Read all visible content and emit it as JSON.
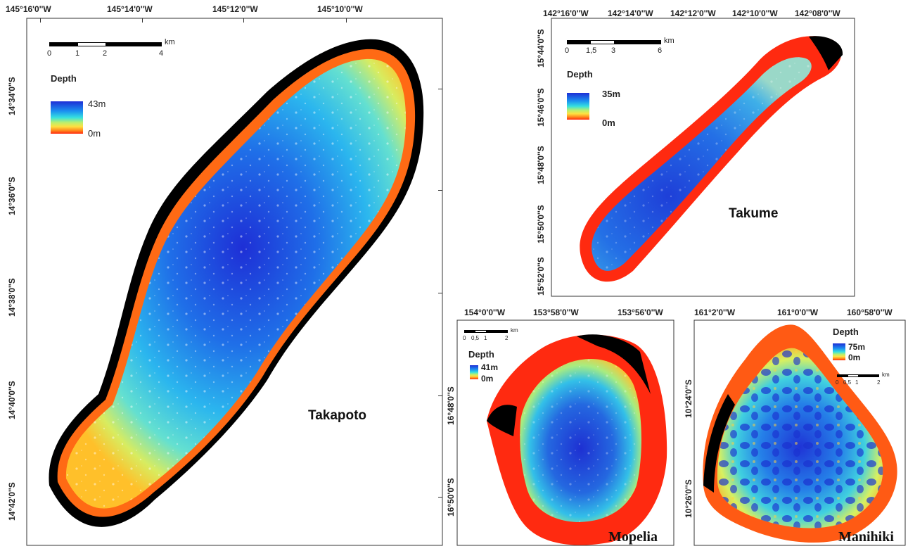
{
  "maps": {
    "takapoto": {
      "name": "Takapoto",
      "lon_labels": [
        "145°16'0''W",
        "145°14'0''W",
        "145°12'0''W",
        "145°10'0''W"
      ],
      "lat_labels": [
        "14°34'0''S",
        "14°36'0''S",
        "14°38'0''S",
        "14°40'0''S",
        "14°42'0''S"
      ],
      "scale_labels": [
        "0",
        "1",
        "2",
        "4",
        "km"
      ],
      "legend": {
        "title": "Depth",
        "max": "43m",
        "min": "0m"
      }
    },
    "takume": {
      "name": "Takume",
      "lon_labels": [
        "142°16'0''W",
        "142°14'0''W",
        "142°12'0''W",
        "142°10'0''W",
        "142°08'0''W"
      ],
      "lat_labels": [
        "15°44'0''S",
        "15°46'0''S",
        "15°48'0''S",
        "15°50'0''S",
        "15°52'0''S"
      ],
      "scale_labels": [
        "0",
        "1,5",
        "3",
        "6",
        "km"
      ],
      "legend": {
        "title": "Depth",
        "max": "35m",
        "min": "0m"
      }
    },
    "mopelia": {
      "name": "Mopelia",
      "lon_labels": [
        "154°0'0''W",
        "153°58'0''W",
        "153°56'0''W"
      ],
      "lat_labels": [
        "16°48'0''S",
        "16°50'0''S"
      ],
      "scale_labels": [
        "0",
        "0,5",
        "1",
        "2",
        "km"
      ],
      "legend": {
        "title": "Depth",
        "max": "41m",
        "min": "0m"
      }
    },
    "manihiki": {
      "name": "Manihiki",
      "lon_labels": [
        "161°2'0''W",
        "161°0'0''W",
        "160°58'0''W"
      ],
      "lat_labels": [
        "10°24'0''S",
        "10°26'0''S"
      ],
      "scale_labels": [
        "0",
        "0,5",
        "1",
        "2",
        "km"
      ],
      "legend": {
        "title": "Depth",
        "max": "75m",
        "min": "0m"
      }
    }
  },
  "colors": {
    "deep": "#1e2fd6",
    "mid": "#35e0e0",
    "shallow": "#ffe040",
    "rim": "#ff2a10",
    "land": "#000000"
  }
}
